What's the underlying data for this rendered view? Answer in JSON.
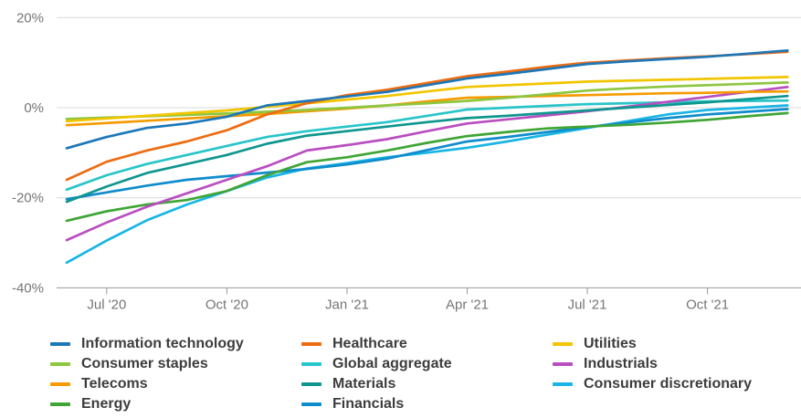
{
  "chart_data": {
    "type": "line",
    "title": "",
    "xlabel": "",
    "ylabel": "",
    "ylim": [
      -40,
      20
    ],
    "grid": true,
    "legend_position": "bottom",
    "yticks": [
      {
        "value": 20,
        "label": "20%"
      },
      {
        "value": 0,
        "label": "0%"
      },
      {
        "value": -20,
        "label": "-20%"
      },
      {
        "value": -40,
        "label": "-40%"
      }
    ],
    "xticks": [
      {
        "index": 1,
        "label": "Jul '20"
      },
      {
        "index": 4,
        "label": "Oct '20"
      },
      {
        "index": 7,
        "label": "Jan '21"
      },
      {
        "index": 10,
        "label": "Apr '21"
      },
      {
        "index": 13,
        "label": "Jul '21"
      },
      {
        "index": 16,
        "label": "Oct '21"
      }
    ],
    "x": [
      "Jun '20",
      "Jul '20",
      "Aug '20",
      "Sep '20",
      "Oct '20",
      "Nov '20",
      "Dec '20",
      "Jan '21",
      "Feb '21",
      "Mar '21",
      "Apr '21",
      "May '21",
      "Jun '21",
      "Jul '21",
      "Aug '21",
      "Sep '21",
      "Oct '21",
      "Nov '21",
      "Dec '21"
    ],
    "unit": "%",
    "draw_order": [
      5,
      10,
      7,
      3,
      9,
      6,
      2,
      1,
      8,
      4,
      0
    ],
    "series": [
      {
        "name": "Information technology",
        "color": "#1c77b8",
        "values": [
          -9,
          -6.5,
          -4.5,
          -3.5,
          -2,
          0.5,
          1.5,
          2.5,
          3.5,
          5,
          6.5,
          7.5,
          8.6,
          9.7,
          10.3,
          10.8,
          11.3,
          12,
          12.7
        ]
      },
      {
        "name": "Consumer staples",
        "color": "#8dc63f",
        "values": [
          -2.5,
          -2.2,
          -1.9,
          -1.6,
          -1.3,
          -0.9,
          -0.5,
          0,
          0.5,
          1,
          1.5,
          2.2,
          3,
          3.8,
          4.3,
          4.7,
          5,
          5.3,
          5.6
        ]
      },
      {
        "name": "Telecoms",
        "color": "#f59b00",
        "values": [
          -3.9,
          -3.4,
          -2.9,
          -2.4,
          -1.9,
          -1.4,
          -0.8,
          -0.2,
          0.5,
          1.4,
          2.2,
          2.4,
          2.6,
          2.8,
          3,
          3.2,
          3.3,
          3.5,
          3.6
        ]
      },
      {
        "name": "Energy",
        "color": "#3fa535",
        "values": [
          -25.1,
          -23,
          -21.5,
          -20.5,
          -18.5,
          -15,
          -12.1,
          -11,
          -9.5,
          -7.8,
          -6.3,
          -5.4,
          -4.6,
          -4.2,
          -3.8,
          -3.3,
          -2.7,
          -1.9,
          -1.2
        ]
      },
      {
        "name": "Healthcare",
        "color": "#ed6c11",
        "values": [
          -16,
          -12,
          -9.5,
          -7.5,
          -5,
          -1.5,
          1,
          2.8,
          4,
          5.5,
          7,
          8,
          9.1,
          10,
          10.5,
          11,
          11.4,
          11.9,
          12.4
        ]
      },
      {
        "name": "Global aggregate",
        "color": "#29c5c9",
        "values": [
          -18.2,
          -15,
          -12.5,
          -10.5,
          -8.5,
          -6.5,
          -5.2,
          -4.2,
          -3.2,
          -1.8,
          -0.4,
          0,
          0.4,
          0.8,
          1,
          1.2,
          1.4,
          1.5,
          1.6
        ]
      },
      {
        "name": "Materials",
        "color": "#0e968f",
        "values": [
          -20.9,
          -17.5,
          -14.5,
          -12.5,
          -10.5,
          -8,
          -6.2,
          -5.2,
          -4.2,
          -3.2,
          -2.3,
          -1.8,
          -1.2,
          -0.6,
          0,
          0.6,
          1.2,
          1.9,
          2.6
        ]
      },
      {
        "name": "Financials",
        "color": "#0f8ccc",
        "values": [
          -20.3,
          -18.8,
          -17.3,
          -16,
          -15.2,
          -14.4,
          -13.6,
          -12.6,
          -11.3,
          -9.4,
          -7.5,
          -6.5,
          -5.4,
          -4.3,
          -3.3,
          -2.3,
          -1.5,
          -0.9,
          -0.3
        ]
      },
      {
        "name": "Utilities",
        "color": "#f2c500",
        "values": [
          -3,
          -2.4,
          -1.8,
          -1.2,
          -0.6,
          0.2,
          1,
          1.8,
          2.6,
          3.6,
          4.6,
          5,
          5.4,
          5.8,
          6,
          6.2,
          6.4,
          6.6,
          6.8
        ]
      },
      {
        "name": "Industrials",
        "color": "#b94ec0",
        "values": [
          -29.4,
          -25.5,
          -22,
          -19,
          -16,
          -13,
          -9.5,
          -8.3,
          -7,
          -5.2,
          -3.5,
          -2.6,
          -1.7,
          -0.8,
          0.2,
          1.3,
          2.4,
          3.5,
          4.6
        ]
      },
      {
        "name": "Consumer discretionary",
        "color": "#19b5e5",
        "values": [
          -34.4,
          -29.5,
          -25,
          -21.5,
          -18.5,
          -15.5,
          -13.5,
          -12.3,
          -11,
          -10,
          -8.9,
          -7.5,
          -6,
          -4.5,
          -3,
          -1.5,
          -0.5,
          0,
          0.5
        ]
      }
    ],
    "style": {
      "grid_color": "#d9d9d9",
      "axis_color": "#999999",
      "tick_label_color": "#757575",
      "legend_text_color": "#3d3d3d"
    }
  }
}
